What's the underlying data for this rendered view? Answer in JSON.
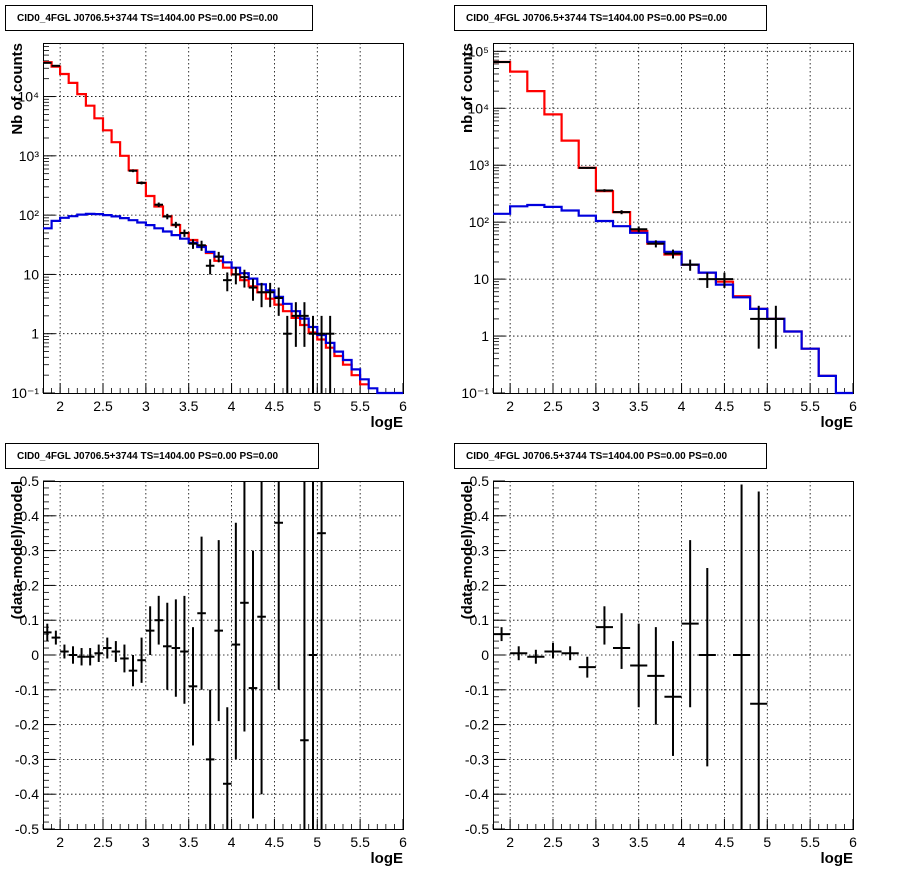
{
  "chart_data": [
    {
      "type": "line",
      "title": "CID0_4FGL J0706.5+3744 TS=1404.00 PS=0.00 PS=0.00",
      "xlabel": "logE",
      "ylabel": "Nb of counts",
      "log_y": true,
      "xlim": [
        1.8,
        6.0
      ],
      "ylim": [
        0.1,
        80000
      ],
      "grid": true,
      "x_ticks": [
        "2",
        "2.5",
        "3",
        "3.5",
        "4",
        "4.5",
        "5",
        "5.5",
        "6"
      ],
      "y_ticks": [
        "10^-1",
        "1",
        "10",
        "10^2",
        "10^3",
        "10^4"
      ],
      "bin_edges": [
        1.8,
        1.9,
        2.0,
        2.1,
        2.2,
        2.3,
        2.4,
        2.5,
        2.6,
        2.7,
        2.8,
        2.9,
        3.0,
        3.1,
        3.2,
        3.3,
        3.4,
        3.5,
        3.6,
        3.7,
        3.8,
        3.9,
        4.0,
        4.1,
        4.2,
        4.3,
        4.4,
        4.5,
        4.6,
        4.7,
        4.8,
        4.9,
        5.0,
        5.1,
        5.2,
        5.3,
        5.4,
        5.5,
        5.6,
        5.7,
        5.8,
        5.9,
        6.0
      ],
      "series": [
        {
          "color": "#ff0000",
          "values": [
            38000,
            32000,
            24000,
            17000,
            11000,
            7000,
            4300,
            2700,
            1700,
            1000,
            570,
            350,
            210,
            140,
            95,
            68,
            50,
            38,
            30,
            23,
            17,
            13,
            10,
            8,
            6.3,
            5.0,
            3.9,
            3.1,
            2.4,
            1.85,
            1.4,
            1.05,
            0.8,
            0.58,
            0.42,
            0.3,
            0.2,
            0.14,
            null,
            null,
            null,
            null
          ]
        },
        {
          "color": "#0000dd",
          "values": [
            60,
            80,
            90,
            96,
            102,
            105,
            104,
            100,
            95,
            89,
            82,
            75,
            68,
            60,
            53,
            46,
            40,
            34,
            29,
            24,
            20,
            16,
            13,
            10.5,
            8.5,
            6.8,
            5.4,
            4.2,
            3.2,
            2.4,
            1.8,
            1.3,
            0.95,
            0.7,
            0.5,
            0.36,
            0.25,
            0.17,
            0.12,
            0.1,
            0.1,
            0.1
          ]
        }
      ],
      "points": [
        {
          "x": 1.85,
          "y": 37000,
          "xerr": 0.05,
          "lo": 36600,
          "hi": 37400
        },
        {
          "x": 1.95,
          "y": 33000,
          "xerr": 0.05,
          "lo": 32600,
          "hi": 33400
        },
        {
          "x": 2.85,
          "y": 560,
          "xerr": 0.05,
          "lo": 530,
          "hi": 590
        },
        {
          "x": 2.95,
          "y": 350,
          "xerr": 0.05,
          "lo": 330,
          "hi": 370
        },
        {
          "x": 3.15,
          "y": 150,
          "xerr": 0.05,
          "lo": 137,
          "hi": 163
        },
        {
          "x": 3.25,
          "y": 95,
          "xerr": 0.05,
          "lo": 85,
          "hi": 105
        },
        {
          "x": 3.35,
          "y": 69,
          "xerr": 0.05,
          "lo": 61,
          "hi": 77
        },
        {
          "x": 3.45,
          "y": 50,
          "xerr": 0.05,
          "lo": 43,
          "hi": 57
        },
        {
          "x": 3.55,
          "y": 33,
          "xerr": 0.05,
          "lo": 27,
          "hi": 39
        },
        {
          "x": 3.65,
          "y": 31,
          "xerr": 0.05,
          "lo": 25,
          "hi": 37
        },
        {
          "x": 3.75,
          "y": 14,
          "xerr": 0.05,
          "lo": 10,
          "hi": 18
        },
        {
          "x": 3.85,
          "y": 20,
          "xerr": 0.05,
          "lo": 16,
          "hi": 24
        },
        {
          "x": 3.95,
          "y": 8,
          "xerr": 0.05,
          "lo": 5.2,
          "hi": 10.8
        },
        {
          "x": 4.05,
          "y": 10,
          "xerr": 0.05,
          "lo": 6.8,
          "hi": 13.2
        },
        {
          "x": 4.15,
          "y": 9,
          "xerr": 0.05,
          "lo": 6,
          "hi": 12
        },
        {
          "x": 4.25,
          "y": 6,
          "xerr": 0.05,
          "lo": 3.6,
          "hi": 8.4
        },
        {
          "x": 4.35,
          "y": 5,
          "xerr": 0.05,
          "lo": 2.8,
          "hi": 7.2
        },
        {
          "x": 4.45,
          "y": 5,
          "xerr": 0.05,
          "lo": 2.8,
          "hi": 7.2
        },
        {
          "x": 4.55,
          "y": 4,
          "xerr": 0.05,
          "lo": 2,
          "hi": 6
        },
        {
          "x": 4.65,
          "y": 1,
          "xerr": 0.05,
          "lo": 0.1,
          "hi": 2
        },
        {
          "x": 4.75,
          "y": 2,
          "xerr": 0.05,
          "lo": 0.6,
          "hi": 3.4
        },
        {
          "x": 4.85,
          "y": 2,
          "xerr": 0.05,
          "lo": 0.6,
          "hi": 3.4
        },
        {
          "x": 4.95,
          "y": 1,
          "xerr": 0.05,
          "lo": 0.1,
          "hi": 2
        },
        {
          "x": 5.05,
          "y": 1,
          "xerr": 0.05,
          "lo": 0.1,
          "hi": 2
        },
        {
          "x": 5.15,
          "y": 1,
          "xerr": 0.05,
          "lo": 0.1,
          "hi": 2
        }
      ]
    },
    {
      "type": "line",
      "title": "CID0_4FGL J0706.5+3744 TS=1404.00 PS=0.00 PS=0.00",
      "xlabel": "logE",
      "ylabel": "nb of counts",
      "log_y": true,
      "xlim": [
        1.8,
        6.0
      ],
      "ylim": [
        0.1,
        140000
      ],
      "grid": true,
      "x_ticks": [
        "2",
        "2.5",
        "3",
        "3.5",
        "4",
        "4.5",
        "5",
        "5.5",
        "6"
      ],
      "y_ticks": [
        "10^-1",
        "1",
        "10",
        "10^2",
        "10^3",
        "10^4",
        "10^5"
      ],
      "bin_edges": [
        1.8,
        2.0,
        2.2,
        2.4,
        2.6,
        2.8,
        3.0,
        3.2,
        3.4,
        3.6,
        3.8,
        4.0,
        4.2,
        4.4,
        4.6,
        4.8,
        5.0,
        5.2,
        5.4,
        5.6,
        5.8,
        6.0
      ],
      "series": [
        {
          "color": "#ff0000",
          "values": [
            65000,
            44000,
            20000,
            7800,
            2700,
            900,
            350,
            150,
            70,
            42,
            27,
            18,
            13,
            9,
            5,
            3,
            2,
            1.2,
            0.6,
            0.2,
            null
          ]
        },
        {
          "color": "#0000dd",
          "values": [
            140,
            190,
            200,
            185,
            160,
            130,
            105,
            85,
            65,
            45,
            30,
            18,
            13,
            8,
            4.8,
            3,
            2,
            1.2,
            0.6,
            0.2,
            0.1
          ]
        }
      ],
      "points": [
        {
          "x": 1.9,
          "y": 65000,
          "xerr": 0.1,
          "lo": 64500,
          "hi": 65500
        },
        {
          "x": 2.9,
          "y": 900,
          "xerr": 0.1,
          "lo": 870,
          "hi": 930
        },
        {
          "x": 3.1,
          "y": 360,
          "xerr": 0.1,
          "lo": 340,
          "hi": 380
        },
        {
          "x": 3.3,
          "y": 150,
          "xerr": 0.1,
          "lo": 138,
          "hi": 162
        },
        {
          "x": 3.5,
          "y": 75,
          "xerr": 0.1,
          "lo": 66,
          "hi": 84
        },
        {
          "x": 3.7,
          "y": 42,
          "xerr": 0.1,
          "lo": 36,
          "hi": 48
        },
        {
          "x": 3.9,
          "y": 28,
          "xerr": 0.1,
          "lo": 23,
          "hi": 33
        },
        {
          "x": 4.1,
          "y": 18,
          "xerr": 0.1,
          "lo": 14,
          "hi": 22
        },
        {
          "x": 4.3,
          "y": 10,
          "xerr": 0.1,
          "lo": 7,
          "hi": 13
        },
        {
          "x": 4.5,
          "y": 10,
          "xerr": 0.1,
          "lo": 7,
          "hi": 13
        },
        {
          "x": 4.9,
          "y": 2,
          "xerr": 0.1,
          "lo": 0.6,
          "hi": 3.4
        },
        {
          "x": 5.1,
          "y": 2,
          "xerr": 0.1,
          "lo": 0.6,
          "hi": 3.4
        }
      ]
    },
    {
      "type": "scatter",
      "title": "CID0_4FGL J0706.5+3744 TS=1404.00 PS=0.00 PS=0.00",
      "xlabel": "logE",
      "ylabel": "(data-model)/model",
      "log_y": false,
      "xlim": [
        1.8,
        6.0
      ],
      "ylim": [
        -0.5,
        0.5
      ],
      "grid": true,
      "x_ticks": [
        "2",
        "2.5",
        "3",
        "3.5",
        "4",
        "4.5",
        "5",
        "5.5",
        "6"
      ],
      "y_ticks": [
        "-0.5",
        "-0.4",
        "-0.3",
        "-0.2",
        "-0.1",
        "0",
        "0.1",
        "0.2",
        "0.3",
        "0.4",
        "0.5"
      ],
      "series": [],
      "points": [
        {
          "x": 1.85,
          "y": 0.065,
          "xerr": 0.05,
          "lo": 0.04,
          "hi": 0.09
        },
        {
          "x": 1.95,
          "y": 0.05,
          "xerr": 0.05,
          "lo": 0.03,
          "hi": 0.07
        },
        {
          "x": 2.05,
          "y": 0.01,
          "xerr": 0.05,
          "lo": -0.01,
          "hi": 0.03
        },
        {
          "x": 2.15,
          "y": 0.0,
          "xerr": 0.05,
          "lo": -0.025,
          "hi": 0.025
        },
        {
          "x": 2.25,
          "y": -0.005,
          "xerr": 0.05,
          "lo": -0.03,
          "hi": 0.02
        },
        {
          "x": 2.35,
          "y": -0.005,
          "xerr": 0.05,
          "lo": -0.03,
          "hi": 0.02
        },
        {
          "x": 2.45,
          "y": 0.005,
          "xerr": 0.05,
          "lo": -0.02,
          "hi": 0.03
        },
        {
          "x": 2.55,
          "y": 0.02,
          "xerr": 0.05,
          "lo": -0.01,
          "hi": 0.05
        },
        {
          "x": 2.65,
          "y": 0.01,
          "xerr": 0.05,
          "lo": -0.02,
          "hi": 0.04
        },
        {
          "x": 2.75,
          "y": -0.01,
          "xerr": 0.05,
          "lo": -0.05,
          "hi": 0.03
        },
        {
          "x": 2.85,
          "y": -0.045,
          "xerr": 0.05,
          "lo": -0.09,
          "hi": 0.0
        },
        {
          "x": 2.95,
          "y": -0.015,
          "xerr": 0.05,
          "lo": -0.08,
          "hi": 0.05
        },
        {
          "x": 3.05,
          "y": 0.07,
          "xerr": 0.05,
          "lo": 0.0,
          "hi": 0.14
        },
        {
          "x": 3.15,
          "y": 0.1,
          "xerr": 0.05,
          "lo": 0.03,
          "hi": 0.17
        },
        {
          "x": 3.25,
          "y": 0.025,
          "xerr": 0.05,
          "lo": -0.1,
          "hi": 0.15
        },
        {
          "x": 3.35,
          "y": 0.02,
          "xerr": 0.05,
          "lo": -0.12,
          "hi": 0.16
        },
        {
          "x": 3.45,
          "y": 0.01,
          "xerr": 0.05,
          "lo": -0.14,
          "hi": 0.17
        },
        {
          "x": 3.55,
          "y": -0.09,
          "xerr": 0.05,
          "lo": -0.26,
          "hi": 0.08
        },
        {
          "x": 3.65,
          "y": 0.12,
          "xerr": 0.05,
          "lo": -0.1,
          "hi": 0.34
        },
        {
          "x": 3.75,
          "y": -0.3,
          "xerr": 0.05,
          "lo": -0.5,
          "hi": -0.1
        },
        {
          "x": 3.85,
          "y": 0.07,
          "xerr": 0.05,
          "lo": -0.19,
          "hi": 0.33
        },
        {
          "x": 3.95,
          "y": -0.37,
          "xerr": 0.05,
          "lo": -0.5,
          "hi": -0.15
        },
        {
          "x": 4.05,
          "y": 0.03,
          "xerr": 0.05,
          "lo": -0.3,
          "hi": 0.38
        },
        {
          "x": 4.15,
          "y": 0.15,
          "xerr": 0.05,
          "lo": -0.22,
          "hi": 0.5
        },
        {
          "x": 4.25,
          "y": -0.095,
          "xerr": 0.05,
          "lo": -0.47,
          "hi": 0.3
        },
        {
          "x": 4.35,
          "y": 0.11,
          "xerr": 0.05,
          "lo": -0.4,
          "hi": 0.5
        },
        {
          "x": 4.55,
          "y": 0.38,
          "xerr": 0.05,
          "lo": -0.1,
          "hi": 0.5
        },
        {
          "x": 4.85,
          "y": -0.245,
          "xerr": 0.05,
          "lo": -0.5,
          "hi": 0.5
        },
        {
          "x": 4.95,
          "y": 0.0,
          "xerr": 0.05,
          "lo": -0.5,
          "hi": 0.5
        },
        {
          "x": 5.05,
          "y": 0.35,
          "xerr": 0.05,
          "lo": -0.5,
          "hi": 0.5
        }
      ]
    },
    {
      "type": "scatter",
      "title": "CID0_4FGL J0706.5+3744 TS=1404.00 PS=0.00 PS=0.00",
      "xlabel": "logE",
      "ylabel": "(data-model)/model",
      "log_y": false,
      "xlim": [
        1.8,
        6.0
      ],
      "ylim": [
        -0.5,
        0.5
      ],
      "grid": true,
      "x_ticks": [
        "2",
        "2.5",
        "3",
        "3.5",
        "4",
        "4.5",
        "5",
        "5.5",
        "6"
      ],
      "y_ticks": [
        "-0.5",
        "-0.4",
        "-0.3",
        "-0.2",
        "-0.1",
        "0",
        "0.1",
        "0.2",
        "0.3",
        "0.4",
        "0.5"
      ],
      "series": [],
      "points": [
        {
          "x": 1.9,
          "y": 0.06,
          "xerr": 0.1,
          "lo": 0.04,
          "hi": 0.08
        },
        {
          "x": 2.1,
          "y": 0.005,
          "xerr": 0.1,
          "lo": -0.015,
          "hi": 0.025
        },
        {
          "x": 2.3,
          "y": -0.005,
          "xerr": 0.1,
          "lo": -0.025,
          "hi": 0.015
        },
        {
          "x": 2.5,
          "y": 0.01,
          "xerr": 0.1,
          "lo": -0.01,
          "hi": 0.035
        },
        {
          "x": 2.7,
          "y": 0.005,
          "xerr": 0.1,
          "lo": -0.015,
          "hi": 0.025
        },
        {
          "x": 2.9,
          "y": -0.035,
          "xerr": 0.1,
          "lo": -0.065,
          "hi": -0.005
        },
        {
          "x": 3.1,
          "y": 0.08,
          "xerr": 0.1,
          "lo": 0.03,
          "hi": 0.14
        },
        {
          "x": 3.3,
          "y": 0.02,
          "xerr": 0.1,
          "lo": -0.04,
          "hi": 0.12
        },
        {
          "x": 3.5,
          "y": -0.03,
          "xerr": 0.1,
          "lo": -0.15,
          "hi": 0.09
        },
        {
          "x": 3.7,
          "y": -0.06,
          "xerr": 0.1,
          "lo": -0.2,
          "hi": 0.08
        },
        {
          "x": 3.9,
          "y": -0.12,
          "xerr": 0.1,
          "lo": -0.29,
          "hi": 0.04
        },
        {
          "x": 4.1,
          "y": 0.09,
          "xerr": 0.1,
          "lo": -0.15,
          "hi": 0.33
        },
        {
          "x": 4.3,
          "y": 0.0,
          "xerr": 0.1,
          "lo": -0.32,
          "hi": 0.25
        },
        {
          "x": 4.7,
          "y": 0.0,
          "xerr": 0.1,
          "lo": -0.5,
          "hi": 0.49
        },
        {
          "x": 4.9,
          "y": -0.14,
          "xerr": 0.1,
          "lo": -0.5,
          "hi": 0.47
        }
      ]
    }
  ]
}
